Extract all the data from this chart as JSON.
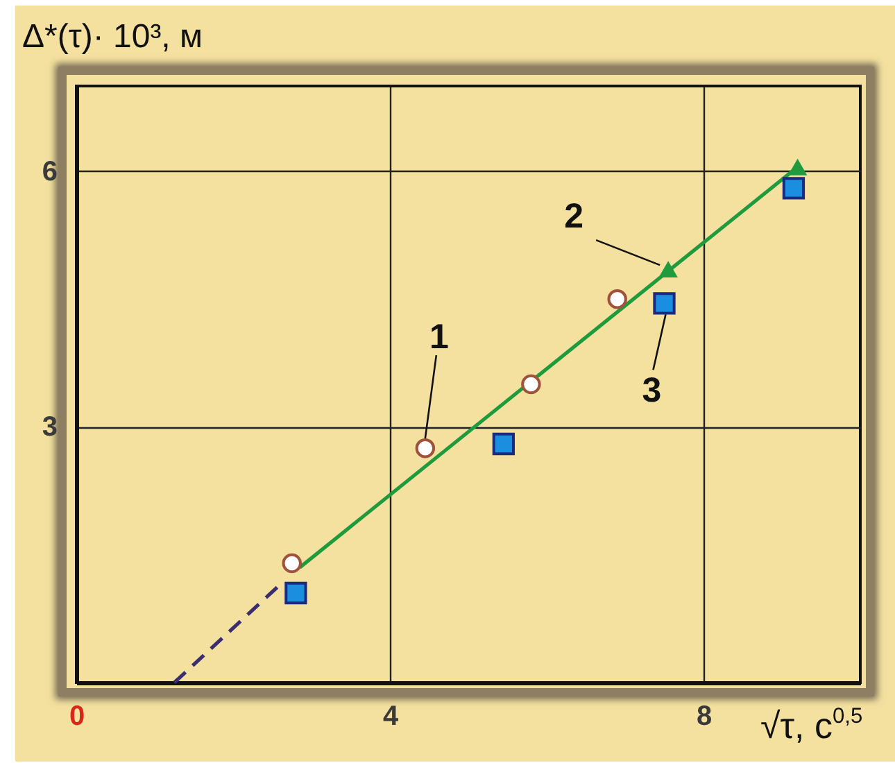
{
  "chart_data": {
    "type": "scatter",
    "xlabel": "√τ, с$^{0,5}$",
    "ylabel": "Δ*(τ)· 10³, м",
    "xlim": [
      0,
      10
    ],
    "ylim": [
      0,
      7
    ],
    "xticks": [
      0,
      4,
      8
    ],
    "yticks": [
      3,
      6
    ],
    "grid": true,
    "legend": false,
    "series": [
      {
        "type": "line",
        "color": "#3b2e6e",
        "line_style": "dashed",
        "marker": "none",
        "x": [
          1.25,
          2.6
        ],
        "values": [
          0,
          1.15
        ]
      },
      {
        "type": "line",
        "color": "#1f9a3c",
        "line_style": "solid",
        "marker": "none",
        "x": [
          2.85,
          9.2
        ],
        "values": [
          1.35,
          6.05
        ]
      },
      {
        "color": "#ffffff",
        "marker": "circle",
        "x": [
          2.75,
          4.45,
          5.8,
          6.9
        ],
        "values": [
          1.4,
          2.75,
          3.5,
          4.5
        ]
      },
      {
        "color": "#1f9a3c",
        "marker": "triangle",
        "x": [
          7.55,
          9.2
        ],
        "values": [
          4.85,
          6.05
        ]
      },
      {
        "color": "#1a8fe0",
        "marker": "square",
        "x": [
          2.8,
          5.45,
          7.5,
          9.15
        ],
        "values": [
          1.05,
          2.8,
          4.45,
          5.8
        ]
      }
    ],
    "annotations": [
      {
        "text": "1",
        "x": 4.45,
        "y": 2.75
      },
      {
        "text": "2",
        "x": 7.55,
        "y": 4.85
      },
      {
        "text": "3",
        "x": 7.5,
        "y": 4.45
      }
    ]
  }
}
